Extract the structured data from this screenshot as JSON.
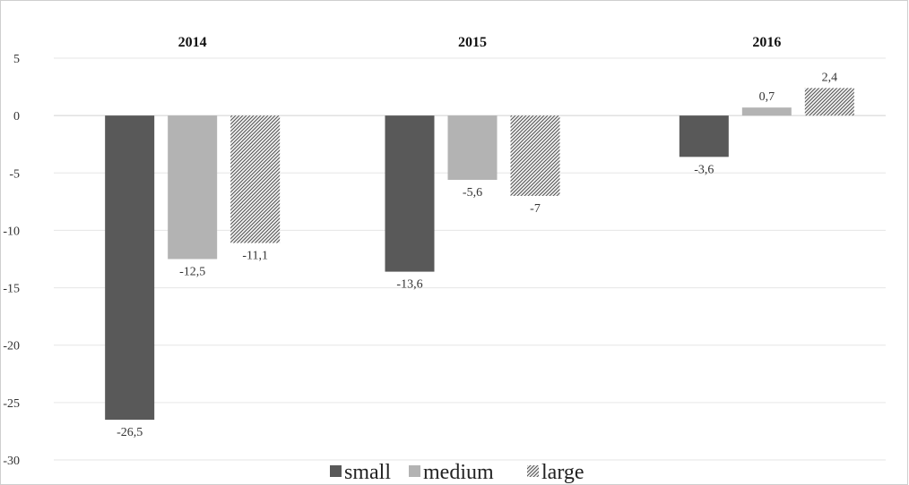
{
  "chart_data": {
    "type": "bar",
    "categories": [
      "2014",
      "2015",
      "2016"
    ],
    "series": [
      {
        "name": "small",
        "values": [
          -26.5,
          -13.6,
          -3.6
        ],
        "labels": [
          "-26,5",
          "-13,6",
          "-3,6"
        ],
        "color": "#595959",
        "pattern": "solid"
      },
      {
        "name": "medium",
        "values": [
          -12.5,
          -5.6,
          0.7
        ],
        "labels": [
          "-12,5",
          "-5,6",
          "0,7"
        ],
        "color": "#b3b3b3",
        "pattern": "solid"
      },
      {
        "name": "large",
        "values": [
          -11.1,
          -7,
          2.4
        ],
        "labels": [
          "-11,1",
          "-7",
          "2,4"
        ],
        "color": "#6e6e6e",
        "pattern": "diagonal-hatch"
      }
    ],
    "y_ticks": [
      5,
      0,
      -5,
      -10,
      -15,
      -20,
      -25,
      -30
    ],
    "ylim": [
      -30,
      5
    ],
    "category_labels_position": "top",
    "grid": true,
    "legend": "bottom-center",
    "title": "",
    "xlabel": "",
    "ylabel": ""
  }
}
